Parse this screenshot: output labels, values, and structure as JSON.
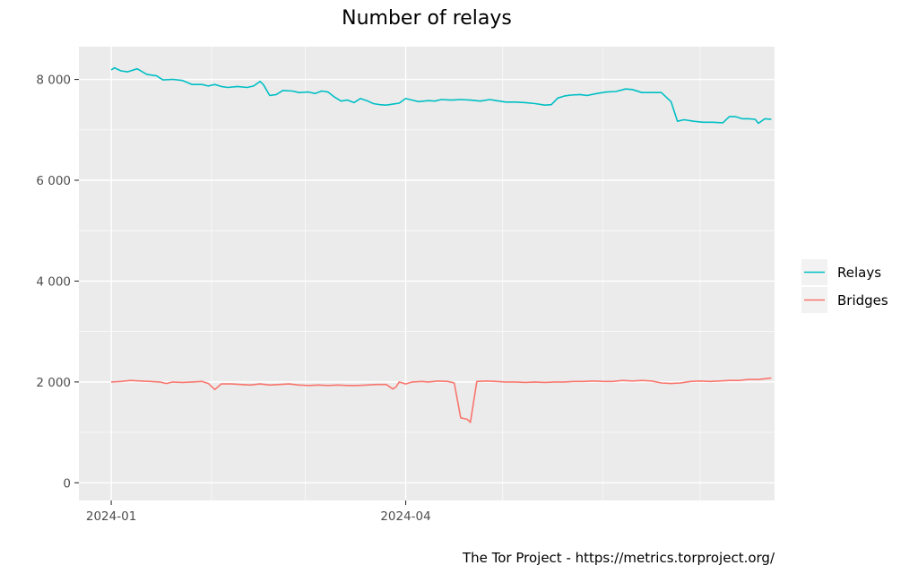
{
  "chart_data": {
    "type": "line",
    "title": "Number of relays",
    "caption": "The Tor Project - https://metrics.torproject.org/",
    "xlabel": "",
    "ylabel": "",
    "x_range": [
      "2023-12-22",
      "2024-07-24"
    ],
    "x_ticks": [
      {
        "date": "2024-01-01",
        "label": "2024-01"
      },
      {
        "date": "2024-04-01",
        "label": "2024-04"
      }
    ],
    "x_minor_gridlines": [
      "2024-02-01",
      "2024-03-01",
      "2024-05-01",
      "2024-06-01",
      "2024-07-01"
    ],
    "ylim": [
      -350,
      8650
    ],
    "y_ticks": [
      {
        "value": 0,
        "label": "0"
      },
      {
        "value": 2000,
        "label": "2 000"
      },
      {
        "value": 4000,
        "label": "4 000"
      },
      {
        "value": 6000,
        "label": "6 000"
      },
      {
        "value": 8000,
        "label": "8 000"
      }
    ],
    "grid": true,
    "legend_position": "right",
    "series": [
      {
        "name": "Relays",
        "color": "#00bfc4",
        "points": [
          [
            "2024-01-01",
            8190
          ],
          [
            "2024-01-02",
            8230
          ],
          [
            "2024-01-04",
            8170
          ],
          [
            "2024-01-06",
            8150
          ],
          [
            "2024-01-09",
            8210
          ],
          [
            "2024-01-12",
            8100
          ],
          [
            "2024-01-15",
            8070
          ],
          [
            "2024-01-17",
            7990
          ],
          [
            "2024-01-20",
            8000
          ],
          [
            "2024-01-23",
            7980
          ],
          [
            "2024-01-26",
            7900
          ],
          [
            "2024-01-29",
            7900
          ],
          [
            "2024-01-31",
            7870
          ],
          [
            "2024-02-02",
            7900
          ],
          [
            "2024-02-04",
            7860
          ],
          [
            "2024-02-06",
            7840
          ],
          [
            "2024-02-09",
            7860
          ],
          [
            "2024-02-12",
            7840
          ],
          [
            "2024-02-14",
            7870
          ],
          [
            "2024-02-16",
            7960
          ],
          [
            "2024-02-17",
            7900
          ],
          [
            "2024-02-19",
            7680
          ],
          [
            "2024-02-21",
            7700
          ],
          [
            "2024-02-23",
            7780
          ],
          [
            "2024-02-26",
            7770
          ],
          [
            "2024-02-28",
            7740
          ],
          [
            "2024-03-02",
            7750
          ],
          [
            "2024-03-04",
            7720
          ],
          [
            "2024-03-06",
            7770
          ],
          [
            "2024-03-08",
            7750
          ],
          [
            "2024-03-10",
            7650
          ],
          [
            "2024-03-12",
            7570
          ],
          [
            "2024-03-14",
            7590
          ],
          [
            "2024-03-16",
            7540
          ],
          [
            "2024-03-18",
            7620
          ],
          [
            "2024-03-20",
            7580
          ],
          [
            "2024-03-22",
            7520
          ],
          [
            "2024-03-24",
            7500
          ],
          [
            "2024-03-26",
            7490
          ],
          [
            "2024-03-28",
            7510
          ],
          [
            "2024-03-30",
            7530
          ],
          [
            "2024-04-01",
            7620
          ],
          [
            "2024-04-03",
            7590
          ],
          [
            "2024-04-05",
            7560
          ],
          [
            "2024-04-08",
            7580
          ],
          [
            "2024-04-10",
            7570
          ],
          [
            "2024-04-12",
            7600
          ],
          [
            "2024-04-15",
            7590
          ],
          [
            "2024-04-18",
            7600
          ],
          [
            "2024-04-21",
            7590
          ],
          [
            "2024-04-24",
            7570
          ],
          [
            "2024-04-27",
            7600
          ],
          [
            "2024-04-29",
            7580
          ],
          [
            "2024-05-02",
            7550
          ],
          [
            "2024-05-05",
            7550
          ],
          [
            "2024-05-08",
            7540
          ],
          [
            "2024-05-11",
            7520
          ],
          [
            "2024-05-14",
            7490
          ],
          [
            "2024-05-16",
            7500
          ],
          [
            "2024-05-18",
            7630
          ],
          [
            "2024-05-20",
            7670
          ],
          [
            "2024-05-22",
            7690
          ],
          [
            "2024-05-25",
            7700
          ],
          [
            "2024-05-27",
            7680
          ],
          [
            "2024-05-30",
            7720
          ],
          [
            "2024-06-02",
            7750
          ],
          [
            "2024-06-05",
            7760
          ],
          [
            "2024-06-08",
            7810
          ],
          [
            "2024-06-10",
            7800
          ],
          [
            "2024-06-13",
            7740
          ],
          [
            "2024-06-16",
            7740
          ],
          [
            "2024-06-19",
            7740
          ],
          [
            "2024-06-22",
            7560
          ],
          [
            "2024-06-24",
            7170
          ],
          [
            "2024-06-26",
            7200
          ],
          [
            "2024-06-29",
            7170
          ],
          [
            "2024-07-02",
            7150
          ],
          [
            "2024-07-05",
            7150
          ],
          [
            "2024-07-08",
            7140
          ],
          [
            "2024-07-10",
            7260
          ],
          [
            "2024-07-12",
            7260
          ],
          [
            "2024-07-14",
            7220
          ],
          [
            "2024-07-16",
            7220
          ],
          [
            "2024-07-18",
            7210
          ],
          [
            "2024-07-19",
            7130
          ],
          [
            "2024-07-21",
            7220
          ],
          [
            "2024-07-23",
            7210
          ]
        ]
      },
      {
        "name": "Bridges",
        "color": "#f8766d",
        "points": [
          [
            "2024-01-01",
            2000
          ],
          [
            "2024-01-04",
            2010
          ],
          [
            "2024-01-07",
            2030
          ],
          [
            "2024-01-10",
            2020
          ],
          [
            "2024-01-13",
            2010
          ],
          [
            "2024-01-16",
            2000
          ],
          [
            "2024-01-18",
            1970
          ],
          [
            "2024-01-20",
            2000
          ],
          [
            "2024-01-23",
            1990
          ],
          [
            "2024-01-26",
            2000
          ],
          [
            "2024-01-29",
            2010
          ],
          [
            "2024-01-31",
            1970
          ],
          [
            "2024-02-02",
            1850
          ],
          [
            "2024-02-04",
            1960
          ],
          [
            "2024-02-07",
            1960
          ],
          [
            "2024-02-10",
            1950
          ],
          [
            "2024-02-13",
            1940
          ],
          [
            "2024-02-16",
            1960
          ],
          [
            "2024-02-19",
            1940
          ],
          [
            "2024-02-22",
            1950
          ],
          [
            "2024-02-25",
            1960
          ],
          [
            "2024-02-28",
            1940
          ],
          [
            "2024-03-02",
            1930
          ],
          [
            "2024-03-05",
            1940
          ],
          [
            "2024-03-08",
            1930
          ],
          [
            "2024-03-11",
            1940
          ],
          [
            "2024-03-14",
            1930
          ],
          [
            "2024-03-17",
            1930
          ],
          [
            "2024-03-20",
            1940
          ],
          [
            "2024-03-23",
            1950
          ],
          [
            "2024-03-26",
            1950
          ],
          [
            "2024-03-28",
            1860
          ],
          [
            "2024-03-29",
            1900
          ],
          [
            "2024-03-30",
            2000
          ],
          [
            "2024-04-01",
            1960
          ],
          [
            "2024-04-03",
            2000
          ],
          [
            "2024-04-06",
            2010
          ],
          [
            "2024-04-08",
            2000
          ],
          [
            "2024-04-11",
            2020
          ],
          [
            "2024-04-14",
            2010
          ],
          [
            "2024-04-16",
            1980
          ],
          [
            "2024-04-18",
            1290
          ],
          [
            "2024-04-20",
            1260
          ],
          [
            "2024-04-21",
            1200
          ],
          [
            "2024-04-23",
            2010
          ],
          [
            "2024-04-26",
            2020
          ],
          [
            "2024-04-29",
            2010
          ],
          [
            "2024-05-02",
            2000
          ],
          [
            "2024-05-05",
            2000
          ],
          [
            "2024-05-08",
            1990
          ],
          [
            "2024-05-11",
            2000
          ],
          [
            "2024-05-14",
            1990
          ],
          [
            "2024-05-17",
            2000
          ],
          [
            "2024-05-20",
            2000
          ],
          [
            "2024-05-23",
            2010
          ],
          [
            "2024-05-26",
            2010
          ],
          [
            "2024-05-29",
            2020
          ],
          [
            "2024-06-01",
            2010
          ],
          [
            "2024-06-04",
            2010
          ],
          [
            "2024-06-07",
            2030
          ],
          [
            "2024-06-10",
            2020
          ],
          [
            "2024-06-13",
            2030
          ],
          [
            "2024-06-16",
            2020
          ],
          [
            "2024-06-19",
            1980
          ],
          [
            "2024-06-22",
            1970
          ],
          [
            "2024-06-25",
            1980
          ],
          [
            "2024-06-28",
            2010
          ],
          [
            "2024-07-01",
            2020
          ],
          [
            "2024-07-04",
            2010
          ],
          [
            "2024-07-07",
            2020
          ],
          [
            "2024-07-10",
            2030
          ],
          [
            "2024-07-13",
            2030
          ],
          [
            "2024-07-16",
            2050
          ],
          [
            "2024-07-19",
            2050
          ],
          [
            "2024-07-22",
            2070
          ],
          [
            "2024-07-23",
            2080
          ]
        ]
      }
    ]
  }
}
